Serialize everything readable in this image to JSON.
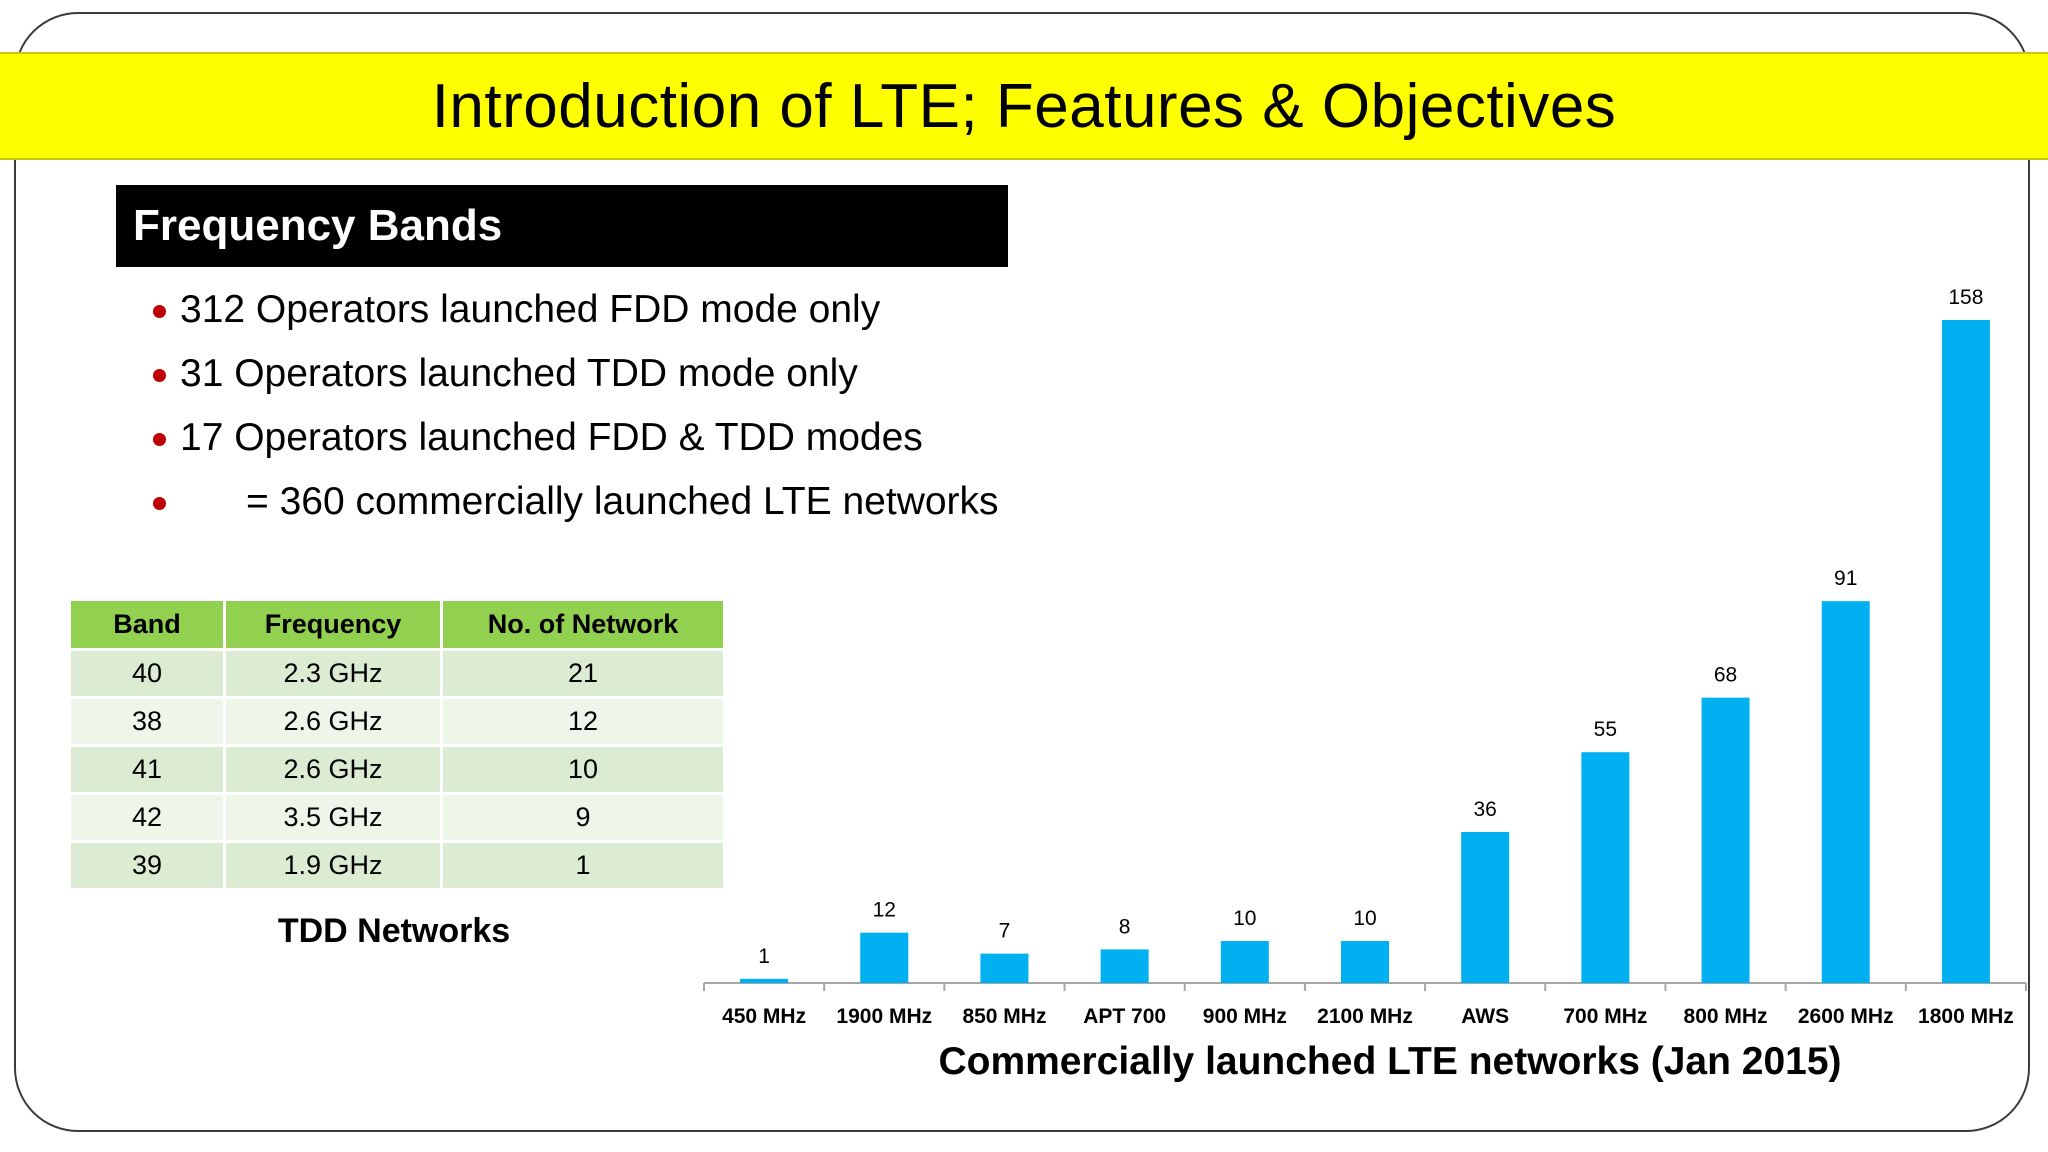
{
  "slide": {
    "title": "Introduction of LTE; Features & Objectives",
    "section_header": "Frequency Bands",
    "bullets": [
      "312 Operators launched FDD mode only",
      "31 Operators launched TDD mode only",
      "17 Operators launched FDD & TDD modes",
      "= 360 commercially launched LTE networks"
    ]
  },
  "table": {
    "headers": [
      "Band",
      "Frequency",
      "No. of Network"
    ],
    "rows": [
      [
        "40",
        "2.3 GHz",
        "21"
      ],
      [
        "38",
        "2.6 GHz",
        "12"
      ],
      [
        "41",
        "2.6 GHz",
        "10"
      ],
      [
        "42",
        "3.5 GHz",
        "9"
      ],
      [
        "39",
        "1.9 GHz",
        "1"
      ]
    ],
    "caption": "TDD Networks",
    "colors": {
      "header": "#92d050",
      "row_odd": "#dcecd2",
      "row_even": "#eef6ea"
    }
  },
  "chart_data": {
    "type": "bar",
    "title": "Commercially launched LTE networks (Jan 2015)",
    "categories": [
      "450 MHz",
      "1900 MHz",
      "850 MHz",
      "APT 700",
      "900 MHz",
      "2100 MHz",
      "AWS",
      "700 MHz",
      "800 MHz",
      "2600 MHz",
      "1800 MHz"
    ],
    "values": [
      1,
      12,
      7,
      8,
      10,
      10,
      36,
      55,
      68,
      91,
      158
    ],
    "data_labels": [
      "1",
      "12",
      "7",
      "8",
      "10",
      "10",
      "36",
      "55",
      "68",
      "91",
      "158"
    ],
    "bar_color": "#00b0f0",
    "grid": false,
    "legend": "none"
  }
}
